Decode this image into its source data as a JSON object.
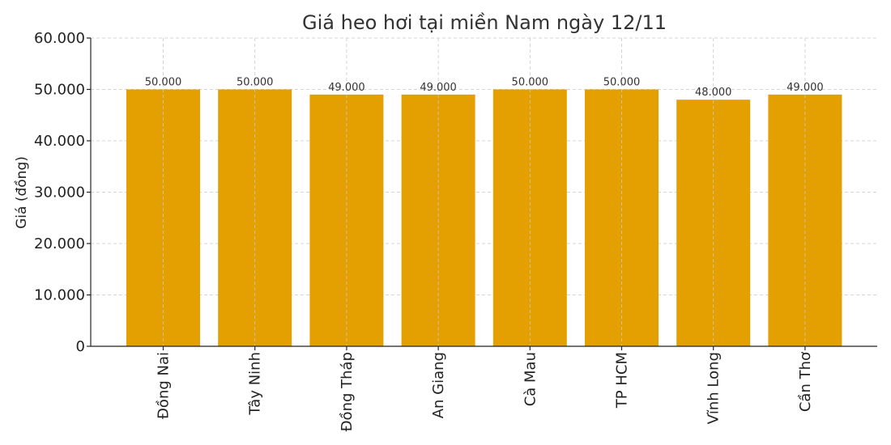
{
  "chart_data": {
    "type": "bar",
    "title": "Giá heo hơi tại miền Nam ngày 12/11",
    "xlabel": "",
    "ylabel": "Giá (đồng)",
    "categories": [
      "Đồng Nai",
      "Tây Ninh",
      "Đồng Tháp",
      "An Giang",
      "Cà Mau",
      "TP HCM",
      "Vĩnh Long",
      "Cần Thơ"
    ],
    "values": [
      50000,
      50000,
      49000,
      49000,
      50000,
      50000,
      48000,
      49000
    ],
    "value_labels": [
      "50.000",
      "50.000",
      "49.000",
      "49.000",
      "50.000",
      "50.000",
      "48.000",
      "49.000"
    ],
    "ylim": [
      0,
      60000
    ],
    "yticks": [
      0,
      10000,
      20000,
      30000,
      40000,
      50000,
      60000
    ],
    "ytick_labels": [
      "0",
      "10.000",
      "20.000",
      "30.000",
      "40.000",
      "50.000",
      "60.000"
    ],
    "grid": true,
    "bar_color": "#E3A000"
  }
}
